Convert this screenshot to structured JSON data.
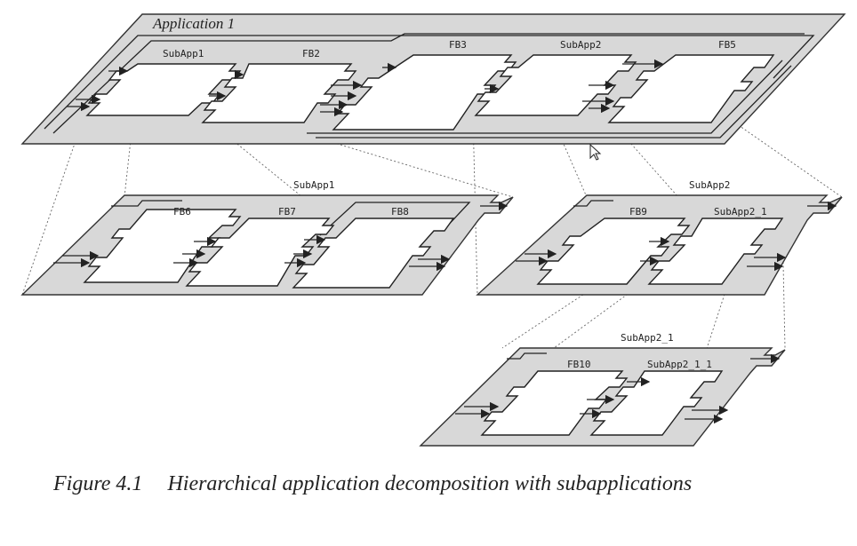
{
  "diagram": {
    "top_layer": {
      "title": "Application 1",
      "blocks": [
        "SubApp1",
        "FB2",
        "FB3",
        "SubApp2",
        "FB5"
      ]
    },
    "subapp1_layer": {
      "title": "SubApp1",
      "blocks": [
        "FB6",
        "FB7",
        "FB8"
      ]
    },
    "subapp2_layer": {
      "title": "SubApp2",
      "blocks": [
        "FB9",
        "SubApp2_1"
      ]
    },
    "subapp2_1_layer": {
      "title": "SubApp2_1",
      "blocks": [
        "FB10",
        "SubApp2_1_1"
      ]
    }
  },
  "caption": {
    "number": "Figure 4.1",
    "text": "Hierarchical application decomposition with subapplications"
  },
  "icons": {
    "cursor": "mouse-pointer-icon"
  }
}
